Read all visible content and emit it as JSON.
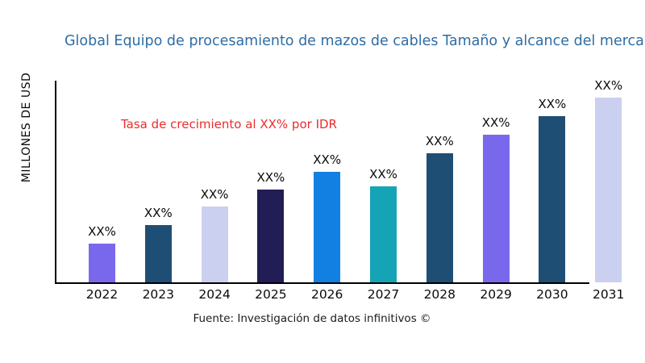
{
  "title": "Global Equipo de procesamiento de mazos de cables Tamaño y alcance del mercado",
  "y_axis_label": "MILLONES DE USD",
  "annotation": {
    "text": "Tasa de crecimiento al XX% por IDR",
    "color": "#EC2D2D"
  },
  "source": "Fuente: Investigación de datos infinitivos ©",
  "colors": {
    "title": "#2E6DA4",
    "axis": "#000000",
    "label_text": "#0a0a0a"
  },
  "chart_data": {
    "type": "bar",
    "title": "Global Equipo de procesamiento de mazos de cables Tamaño y alcance del mercado",
    "xlabel": "",
    "ylabel": "MILLONES DE USD",
    "categories": [
      "2022",
      "2023",
      "2024",
      "2025",
      "2026",
      "2027",
      "2028",
      "2029",
      "2030",
      "2031"
    ],
    "values": [
      21,
      31,
      41,
      50,
      60,
      52,
      70,
      80,
      90,
      100
    ],
    "value_units": "relative size (numeric axis not shown; bars labeled XX%)",
    "bar_labels": [
      "XX%",
      "XX%",
      "XX%",
      "XX%",
      "XX%",
      "XX%",
      "XX%",
      "XX%",
      "XX%",
      "XX%"
    ],
    "bar_colors": [
      "#7A68EC",
      "#1F4E74",
      "#CBD0F0",
      "#221D54",
      "#1280E2",
      "#15A4B6",
      "#1F4E74",
      "#7A68EC",
      "#1F4E74",
      "#CBD0F0"
    ],
    "grid": false,
    "legend": false,
    "ylim": [
      0,
      110
    ]
  }
}
